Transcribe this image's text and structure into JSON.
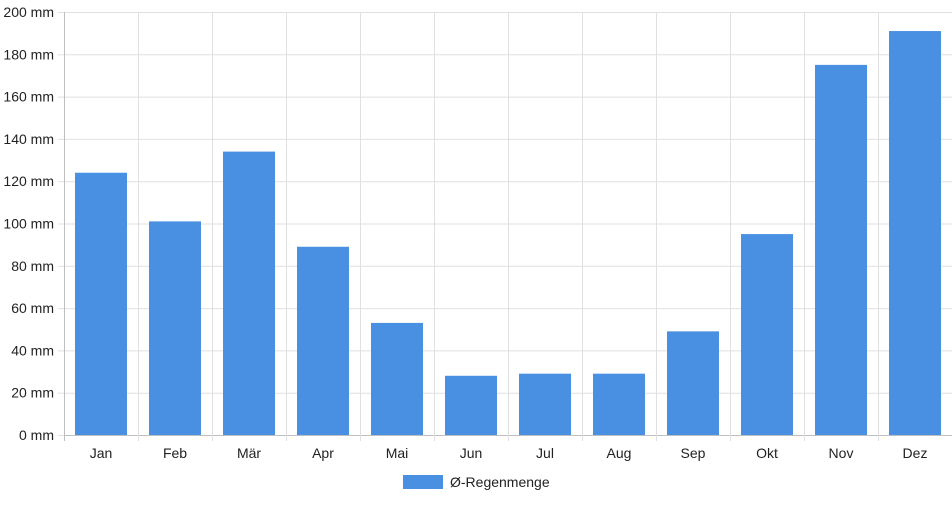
{
  "chart_data": {
    "type": "bar",
    "categories": [
      "Jan",
      "Feb",
      "Mär",
      "Apr",
      "Mai",
      "Jun",
      "Jul",
      "Aug",
      "Sep",
      "Okt",
      "Nov",
      "Dez"
    ],
    "series": [
      {
        "name": "Ø-Regenmenge",
        "values": [
          124,
          101,
          134,
          89,
          53,
          28,
          29,
          29,
          49,
          95,
          175,
          191
        ],
        "color": "#4a90e2"
      }
    ],
    "y_unit": "mm",
    "ylim": [
      0,
      200
    ],
    "y_ticks": [
      0,
      20,
      40,
      60,
      80,
      100,
      120,
      140,
      160,
      180,
      200
    ],
    "y_tick_labels": [
      "0 mm",
      "20 mm",
      "40 mm",
      "60 mm",
      "80 mm",
      "100 mm",
      "120 mm",
      "140 mm",
      "160 mm",
      "180 mm",
      "200 mm"
    ],
    "grid": true,
    "grid_color": "#e0e0e0",
    "axis_color": "#bfbfbf",
    "legend_position": "bottom-center"
  }
}
